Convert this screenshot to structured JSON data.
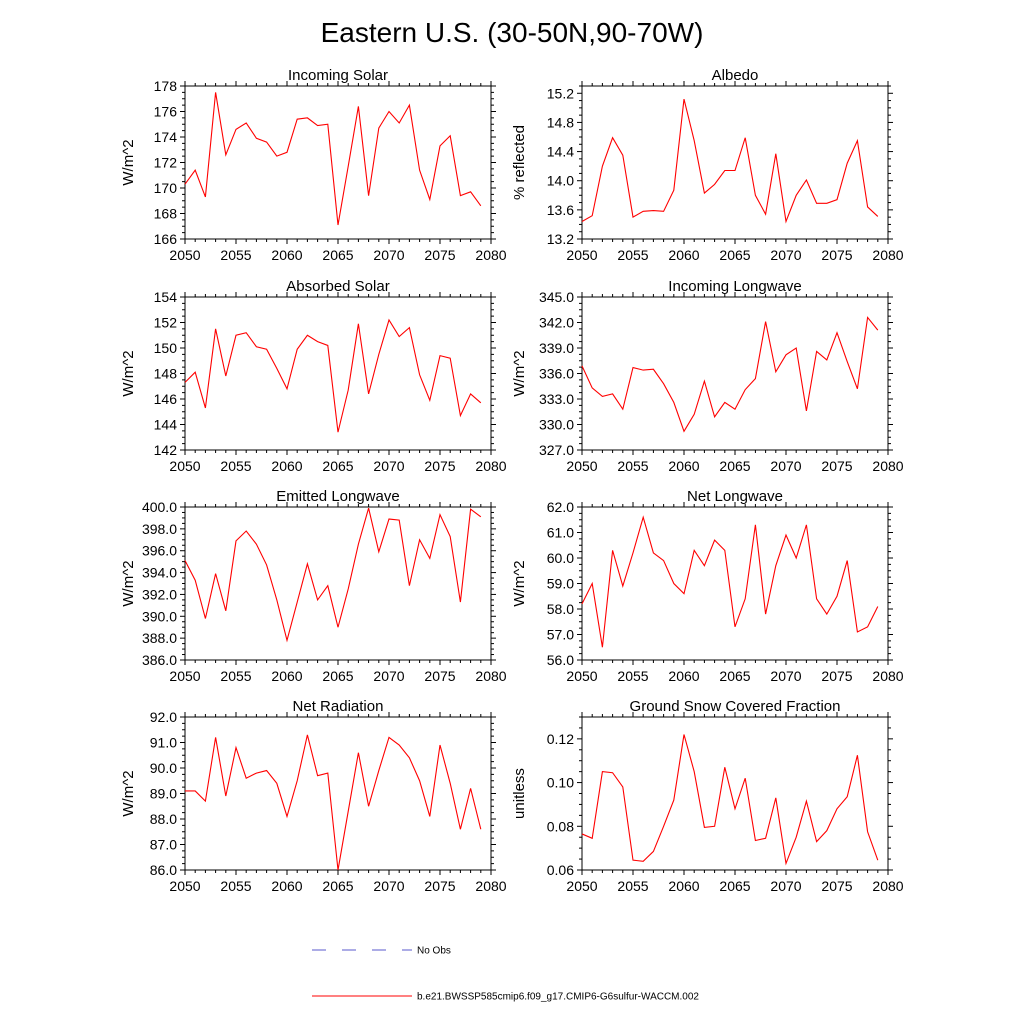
{
  "page": {
    "title": "Eastern U.S. (30-50N,90-70W)"
  },
  "legend": {
    "obs_label": "No Obs",
    "obs_color": "#5a5acd",
    "model_label": "b.e21.BWSSP585cmip6.f09_g17.CMIP6-G6sulfur-WACCM.002",
    "model_color": "#ff0000"
  },
  "chart_data": [
    {
      "type": "line",
      "title": "Incoming Solar",
      "xlabel": "",
      "ylabel": "W/m^2",
      "xlim": [
        2050,
        2080
      ],
      "ylim": [
        166,
        178
      ],
      "xticks": [
        "2050",
        "2055",
        "2060",
        "2065",
        "2070",
        "2075",
        "2080"
      ],
      "yticks": [
        "166",
        "168",
        "170",
        "172",
        "174",
        "176",
        "178"
      ],
      "x": [
        2050,
        2051,
        2052,
        2053,
        2054,
        2055,
        2056,
        2057,
        2058,
        2059,
        2060,
        2061,
        2062,
        2063,
        2064,
        2065,
        2066,
        2067,
        2068,
        2069,
        2070,
        2071,
        2072,
        2073,
        2074,
        2075,
        2076,
        2077,
        2078,
        2079
      ],
      "series": [
        {
          "name": "b.e21.BWSSP585cmip6.f09_g17.CMIP6-G6sulfur-WACCM.002",
          "values": [
            170.3,
            171.4,
            169.3,
            177.5,
            172.6,
            174.6,
            175.1,
            173.9,
            173.6,
            172.5,
            172.8,
            175.4,
            175.5,
            174.9,
            175.0,
            167.1,
            171.7,
            176.4,
            169.4,
            174.7,
            176.0,
            175.1,
            176.5,
            171.4,
            169.1,
            173.3,
            174.1,
            169.4,
            169.7,
            168.6
          ]
        }
      ]
    },
    {
      "type": "line",
      "title": "Albedo",
      "xlabel": "",
      "ylabel": "% reflected",
      "xlim": [
        2050,
        2080
      ],
      "ylim": [
        13.2,
        15.3
      ],
      "xticks": [
        "2050",
        "2055",
        "2060",
        "2065",
        "2070",
        "2075",
        "2080"
      ],
      "yticks": [
        "13.2",
        "13.6",
        "14.0",
        "14.4",
        "14.8",
        "15.2"
      ],
      "x": [
        2050,
        2051,
        2052,
        2053,
        2054,
        2055,
        2056,
        2057,
        2058,
        2059,
        2060,
        2061,
        2062,
        2063,
        2064,
        2065,
        2066,
        2067,
        2068,
        2069,
        2070,
        2071,
        2072,
        2073,
        2074,
        2075,
        2076,
        2077,
        2078,
        2079
      ],
      "series": [
        {
          "name": "b.e21.BWSSP585cmip6.f09_g17.CMIP6-G6sulfur-WACCM.002",
          "values": [
            13.44,
            13.52,
            14.2,
            14.59,
            14.35,
            13.5,
            13.58,
            13.59,
            13.58,
            13.87,
            15.12,
            14.55,
            13.83,
            13.95,
            14.14,
            14.14,
            14.59,
            13.8,
            13.54,
            14.37,
            13.44,
            13.8,
            14.01,
            13.69,
            13.69,
            13.74,
            14.24,
            14.55,
            13.64,
            13.51
          ]
        }
      ]
    },
    {
      "type": "line",
      "title": "Absorbed Solar",
      "xlabel": "",
      "ylabel": "W/m^2",
      "xlim": [
        2050,
        2080
      ],
      "ylim": [
        142,
        154
      ],
      "xticks": [
        "2050",
        "2055",
        "2060",
        "2065",
        "2070",
        "2075",
        "2080"
      ],
      "yticks": [
        "142",
        "144",
        "146",
        "148",
        "150",
        "152",
        "154"
      ],
      "x": [
        2050,
        2051,
        2052,
        2053,
        2054,
        2055,
        2056,
        2057,
        2058,
        2059,
        2060,
        2061,
        2062,
        2063,
        2064,
        2065,
        2066,
        2067,
        2068,
        2069,
        2070,
        2071,
        2072,
        2073,
        2074,
        2075,
        2076,
        2077,
        2078,
        2079
      ],
      "series": [
        {
          "name": "b.e21.BWSSP585cmip6.f09_g17.CMIP6-G6sulfur-WACCM.002",
          "values": [
            147.3,
            148.1,
            145.3,
            151.5,
            147.8,
            151.0,
            151.2,
            150.1,
            149.9,
            148.4,
            146.8,
            149.9,
            151.0,
            150.5,
            150.2,
            143.4,
            146.7,
            151.9,
            146.4,
            149.5,
            152.2,
            150.9,
            151.6,
            147.9,
            145.9,
            149.4,
            149.2,
            144.7,
            146.4,
            145.7
          ]
        }
      ]
    },
    {
      "type": "line",
      "title": "Incoming Longwave",
      "xlabel": "",
      "ylabel": "W/m^2",
      "xlim": [
        2050,
        2080
      ],
      "ylim": [
        327,
        345
      ],
      "xticks": [
        "2050",
        "2055",
        "2060",
        "2065",
        "2070",
        "2075",
        "2080"
      ],
      "yticks": [
        "327.0",
        "330.0",
        "333.0",
        "336.0",
        "339.0",
        "342.0",
        "345.0"
      ],
      "x": [
        2050,
        2051,
        2052,
        2053,
        2054,
        2055,
        2056,
        2057,
        2058,
        2059,
        2060,
        2061,
        2062,
        2063,
        2064,
        2065,
        2066,
        2067,
        2068,
        2069,
        2070,
        2071,
        2072,
        2073,
        2074,
        2075,
        2076,
        2077,
        2078,
        2079
      ],
      "series": [
        {
          "name": "b.e21.BWSSP585cmip6.f09_g17.CMIP6-G6sulfur-WACCM.002",
          "values": [
            336.9,
            334.3,
            333.3,
            333.6,
            331.8,
            336.7,
            336.4,
            336.5,
            334.8,
            332.6,
            329.2,
            331.2,
            335.1,
            330.9,
            332.6,
            331.8,
            334.1,
            335.4,
            342.1,
            336.2,
            338.2,
            339.0,
            331.6,
            338.6,
            337.6,
            340.8,
            337.4,
            334.2,
            342.6,
            341.1
          ]
        }
      ]
    },
    {
      "type": "line",
      "title": "Emitted Longwave",
      "xlabel": "",
      "ylabel": "W/m^2",
      "xlim": [
        2050,
        2080
      ],
      "ylim": [
        386,
        400
      ],
      "xticks": [
        "2050",
        "2055",
        "2060",
        "2065",
        "2070",
        "2075",
        "2080"
      ],
      "yticks": [
        "386.0",
        "388.0",
        "390.0",
        "392.0",
        "394.0",
        "396.0",
        "398.0",
        "400.0"
      ],
      "x": [
        2050,
        2051,
        2052,
        2053,
        2054,
        2055,
        2056,
        2057,
        2058,
        2059,
        2060,
        2061,
        2062,
        2063,
        2064,
        2065,
        2066,
        2067,
        2068,
        2069,
        2070,
        2071,
        2072,
        2073,
        2074,
        2075,
        2076,
        2077,
        2078,
        2079
      ],
      "series": [
        {
          "name": "b.e21.BWSSP585cmip6.f09_g17.CMIP6-G6sulfur-WACCM.002",
          "values": [
            395.1,
            393.3,
            389.8,
            393.9,
            390.5,
            396.9,
            397.8,
            396.6,
            394.7,
            391.5,
            387.8,
            391.3,
            394.8,
            391.5,
            392.8,
            389.0,
            392.5,
            396.6,
            399.9,
            395.9,
            398.9,
            398.8,
            392.8,
            397.0,
            395.3,
            399.3,
            397.3,
            391.3,
            399.8,
            399.1
          ]
        }
      ]
    },
    {
      "type": "line",
      "title": "Net Longwave",
      "xlabel": "",
      "ylabel": "W/m^2",
      "xlim": [
        2050,
        2080
      ],
      "ylim": [
        56,
        62
      ],
      "xticks": [
        "2050",
        "2055",
        "2060",
        "2065",
        "2070",
        "2075",
        "2080"
      ],
      "yticks": [
        "56.0",
        "57.0",
        "58.0",
        "59.0",
        "60.0",
        "61.0",
        "62.0"
      ],
      "x": [
        2050,
        2051,
        2052,
        2053,
        2054,
        2055,
        2056,
        2057,
        2058,
        2059,
        2060,
        2061,
        2062,
        2063,
        2064,
        2065,
        2066,
        2067,
        2068,
        2069,
        2070,
        2071,
        2072,
        2073,
        2074,
        2075,
        2076,
        2077,
        2078,
        2079
      ],
      "series": [
        {
          "name": "b.e21.BWSSP585cmip6.f09_g17.CMIP6-G6sulfur-WACCM.002",
          "values": [
            58.2,
            59.0,
            56.5,
            60.3,
            58.9,
            60.2,
            61.6,
            60.2,
            59.9,
            59.0,
            58.6,
            60.3,
            59.7,
            60.7,
            60.3,
            57.3,
            58.4,
            61.3,
            57.8,
            59.7,
            60.9,
            60.0,
            61.3,
            58.4,
            57.8,
            58.5,
            59.9,
            57.1,
            57.3,
            58.1
          ]
        }
      ]
    },
    {
      "type": "line",
      "title": "Net Radiation",
      "xlabel": "",
      "ylabel": "W/m^2",
      "xlim": [
        2050,
        2080
      ],
      "ylim": [
        86,
        92
      ],
      "xticks": [
        "2050",
        "2055",
        "2060",
        "2065",
        "2070",
        "2075",
        "2080"
      ],
      "yticks": [
        "86.0",
        "87.0",
        "88.0",
        "89.0",
        "90.0",
        "91.0",
        "92.0"
      ],
      "x": [
        2050,
        2051,
        2052,
        2053,
        2054,
        2055,
        2056,
        2057,
        2058,
        2059,
        2060,
        2061,
        2062,
        2063,
        2064,
        2065,
        2066,
        2067,
        2068,
        2069,
        2070,
        2071,
        2072,
        2073,
        2074,
        2075,
        2076,
        2077,
        2078,
        2079
      ],
      "series": [
        {
          "name": "b.e21.BWSSP585cmip6.f09_g17.CMIP6-G6sulfur-WACCM.002",
          "values": [
            89.1,
            89.1,
            88.7,
            91.2,
            88.9,
            90.8,
            89.6,
            89.8,
            89.9,
            89.4,
            88.1,
            89.5,
            91.3,
            89.7,
            89.8,
            86.0,
            88.3,
            90.6,
            88.5,
            89.9,
            91.2,
            90.9,
            90.4,
            89.5,
            88.1,
            90.9,
            89.4,
            87.6,
            89.2,
            87.6
          ]
        }
      ]
    },
    {
      "type": "line",
      "title": "Ground Snow Covered Fraction",
      "xlabel": "",
      "ylabel": "unitless",
      "xlim": [
        2050,
        2080
      ],
      "ylim": [
        0.06,
        0.13
      ],
      "xticks": [
        "2050",
        "2055",
        "2060",
        "2065",
        "2070",
        "2075",
        "2080"
      ],
      "yticks": [
        "0.06",
        "0.08",
        "0.10",
        "0.12"
      ],
      "x": [
        2050,
        2051,
        2052,
        2053,
        2054,
        2055,
        2056,
        2057,
        2058,
        2059,
        2060,
        2061,
        2062,
        2063,
        2064,
        2065,
        2066,
        2067,
        2068,
        2069,
        2070,
        2071,
        2072,
        2073,
        2074,
        2075,
        2076,
        2077,
        2078,
        2079
      ],
      "series": [
        {
          "name": "b.e21.BWSSP585cmip6.f09_g17.CMIP6-G6sulfur-WACCM.002",
          "values": [
            0.0765,
            0.0745,
            0.105,
            0.1045,
            0.098,
            0.0645,
            0.064,
            0.0685,
            0.08,
            0.092,
            0.122,
            0.105,
            0.0795,
            0.08,
            0.107,
            0.088,
            0.102,
            0.0735,
            0.0745,
            0.093,
            0.063,
            0.075,
            0.0915,
            0.073,
            0.078,
            0.088,
            0.0935,
            0.1125,
            0.0775,
            0.0645
          ]
        }
      ]
    }
  ]
}
